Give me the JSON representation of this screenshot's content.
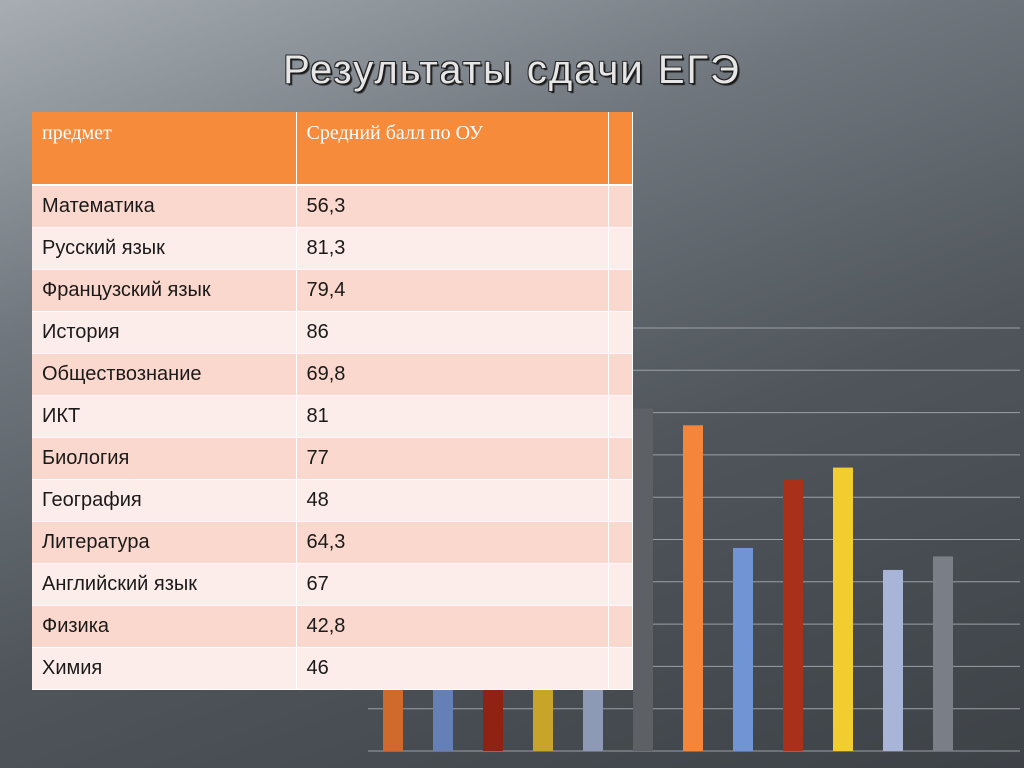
{
  "title": "Результаты сдачи ЕГЭ",
  "table": {
    "headers": [
      "предмет",
      "Средний балл по ОУ",
      ""
    ],
    "rows": [
      {
        "subject": "Математика",
        "score": "56,3"
      },
      {
        "subject": "Русский язык",
        "score": "81,3"
      },
      {
        "subject": "Французский язык",
        "score": "79,4"
      },
      {
        "subject": "История",
        "score": "86"
      },
      {
        "subject": "Обществознание",
        "score": "69,8"
      },
      {
        "subject": "ИКТ",
        "score": "81"
      },
      {
        "subject": "Биология",
        "score": "77"
      },
      {
        "subject": "География",
        "score": "48"
      },
      {
        "subject": "Литература",
        "score": "64,3"
      },
      {
        "subject": "Английский язык",
        "score": "67"
      },
      {
        "subject": "Физика",
        "score": "42,8"
      },
      {
        "subject": "Химия",
        "score": "46"
      }
    ]
  },
  "chart_data": {
    "type": "bar",
    "categories": [
      "Математика",
      "Русский язык",
      "Французский язык",
      "История",
      "Обществознание",
      "ИКТ",
      "Биология",
      "География",
      "Литература",
      "Английский язык",
      "Физика",
      "Химия"
    ],
    "values": [
      56.3,
      81.3,
      79.4,
      86,
      69.8,
      81,
      77,
      48,
      64.3,
      67,
      42.8,
      46
    ],
    "colors": [
      "#d06a2c",
      "#6480b7",
      "#8f2212",
      "#c8a42a",
      "#8e9ab5",
      "#5d6166",
      "#f5853a",
      "#7094d4",
      "#a93119",
      "#f2cd2f",
      "#a9b5d8",
      "#7a7e86"
    ],
    "ylim": [
      0,
      100
    ],
    "grid": true,
    "xlabel": "",
    "ylabel": ""
  }
}
